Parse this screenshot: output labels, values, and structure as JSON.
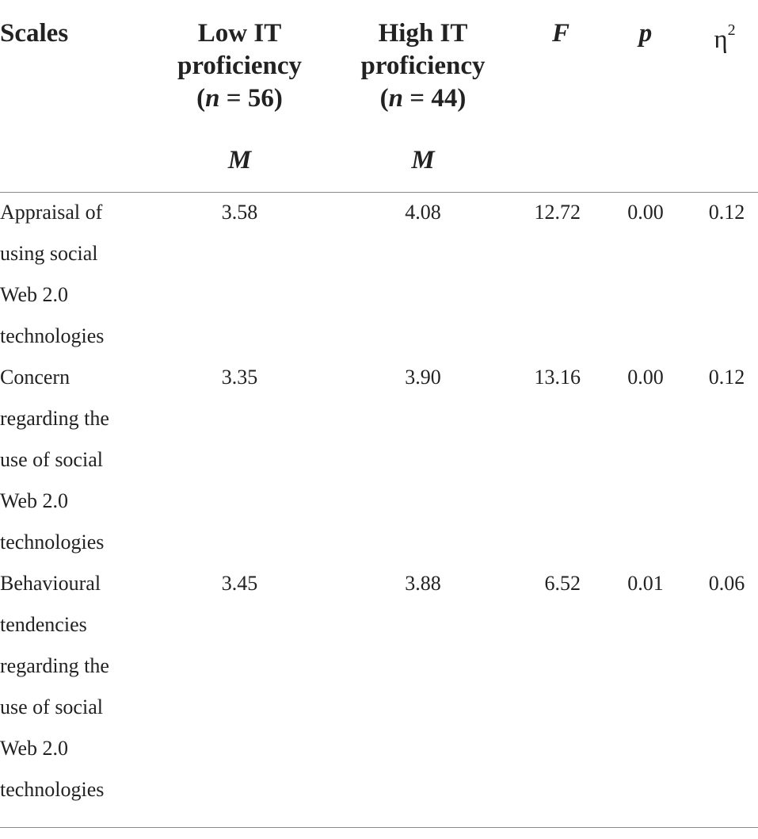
{
  "table": {
    "header": {
      "scales": "Scales",
      "low_line1": "Low IT",
      "low_line2": "proficiency",
      "low_n_open": "(",
      "low_n_var": "n",
      "low_n_rest": " = 56)",
      "high_line1": "High IT",
      "high_line2": "proficiency",
      "high_n_open": "(",
      "high_n_var": "n",
      "high_n_rest": " = 44)",
      "f": "F",
      "p": "p",
      "eta": "η",
      "eta_sup": "2",
      "m_low": "M",
      "m_high": "M"
    },
    "rows": [
      {
        "scale_lines": [
          "Appraisal of",
          "using social",
          "Web 2.0",
          "technologies"
        ],
        "low_m": "3.58",
        "high_m": "4.08",
        "f": "12.72",
        "p": "0.00",
        "eta2": "0.12"
      },
      {
        "scale_lines": [
          "Concern",
          "regarding the",
          "use of social",
          "Web 2.0",
          "technologies"
        ],
        "low_m": "3.35",
        "high_m": "3.90",
        "f": "13.16",
        "p": "0.00",
        "eta2": "0.12"
      },
      {
        "scale_lines": [
          "Behavioural",
          "tendencies",
          "regarding the",
          "use of social",
          "Web 2.0",
          "technologies"
        ],
        "low_m": "3.45",
        "high_m": "3.88",
        "f": "6.52",
        "p": "0.01",
        "eta2": "0.06"
      }
    ]
  }
}
